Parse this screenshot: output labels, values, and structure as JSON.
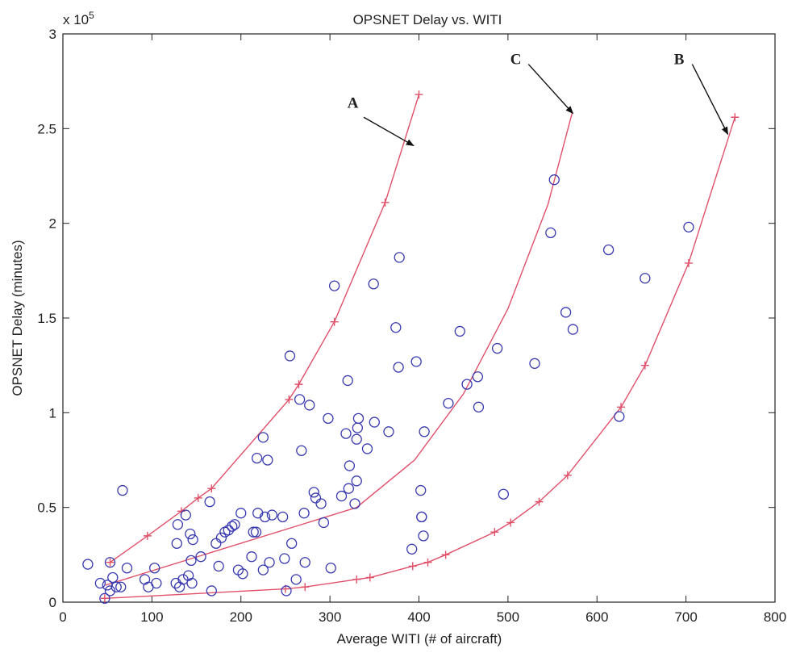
{
  "chart_data": {
    "type": "scatter",
    "title": "OPSNET Delay vs. WITI",
    "xlabel": "Average WITI (# of aircraft)",
    "ylabel": "OPSNET Delay (minutes)",
    "y_exponent_label": "x 10",
    "y_exponent_power": "5",
    "xlim": [
      0,
      800
    ],
    "ylim": [
      0,
      3
    ],
    "xticks": [
      "0",
      "100",
      "200",
      "300",
      "400",
      "500",
      "600",
      "700",
      "800"
    ],
    "yticks": [
      "0",
      "0.5",
      "1",
      "1.5",
      "2",
      "2.5",
      "3"
    ],
    "grid": false,
    "legend": "none",
    "colors": {
      "points": "#3838b0",
      "curves": "#e0506a",
      "axis": "#222222"
    },
    "scatter_points": [
      [
        28,
        0.2
      ],
      [
        42,
        0.1
      ],
      [
        47,
        0.02
      ],
      [
        50,
        0.09
      ],
      [
        53,
        0.06
      ],
      [
        53,
        0.21
      ],
      [
        56,
        0.13
      ],
      [
        60,
        0.08
      ],
      [
        65,
        0.08
      ],
      [
        67,
        0.59
      ],
      [
        72,
        0.18
      ],
      [
        92,
        0.12
      ],
      [
        96,
        0.08
      ],
      [
        103,
        0.18
      ],
      [
        105,
        0.1
      ],
      [
        127,
        0.1
      ],
      [
        128,
        0.31
      ],
      [
        129,
        0.41
      ],
      [
        131,
        0.08
      ],
      [
        135,
        0.12
      ],
      [
        138,
        0.46
      ],
      [
        141,
        0.14
      ],
      [
        143,
        0.36
      ],
      [
        144,
        0.22
      ],
      [
        145,
        0.1
      ],
      [
        146,
        0.33
      ],
      [
        155,
        0.24
      ],
      [
        165,
        0.53
      ],
      [
        167,
        0.06
      ],
      [
        172,
        0.31
      ],
      [
        175,
        0.19
      ],
      [
        178,
        0.34
      ],
      [
        182,
        0.37
      ],
      [
        186,
        0.38
      ],
      [
        190,
        0.4
      ],
      [
        193,
        0.41
      ],
      [
        197,
        0.17
      ],
      [
        200,
        0.47
      ],
      [
        202,
        0.15
      ],
      [
        212,
        0.24
      ],
      [
        214,
        0.37
      ],
      [
        217,
        0.37
      ],
      [
        218,
        0.76
      ],
      [
        219,
        0.47
      ],
      [
        225,
        0.17
      ],
      [
        225,
        0.87
      ],
      [
        227,
        0.45
      ],
      [
        230,
        0.75
      ],
      [
        232,
        0.21
      ],
      [
        235,
        0.46
      ],
      [
        247,
        0.45
      ],
      [
        249,
        0.23
      ],
      [
        251,
        0.06
      ],
      [
        255,
        1.3
      ],
      [
        257,
        0.31
      ],
      [
        262,
        0.12
      ],
      [
        266,
        1.07
      ],
      [
        268,
        0.8
      ],
      [
        271,
        0.47
      ],
      [
        272,
        0.21
      ],
      [
        277,
        1.04
      ],
      [
        282,
        0.58
      ],
      [
        284,
        0.55
      ],
      [
        290,
        0.52
      ],
      [
        293,
        0.42
      ],
      [
        298,
        0.97
      ],
      [
        301,
        0.18
      ],
      [
        305,
        1.67
      ],
      [
        313,
        0.56
      ],
      [
        318,
        0.89
      ],
      [
        320,
        1.17
      ],
      [
        321,
        0.6
      ],
      [
        322,
        0.72
      ],
      [
        328,
        0.52
      ],
      [
        330,
        0.64
      ],
      [
        330,
        0.86
      ],
      [
        331,
        0.92
      ],
      [
        332,
        0.97
      ],
      [
        342,
        0.81
      ],
      [
        349,
        1.68
      ],
      [
        350,
        0.95
      ],
      [
        366,
        0.9
      ],
      [
        374,
        1.45
      ],
      [
        377,
        1.24
      ],
      [
        378,
        1.82
      ],
      [
        392,
        0.28
      ],
      [
        397,
        1.27
      ],
      [
        402,
        0.59
      ],
      [
        403,
        0.45
      ],
      [
        403,
        0.45
      ],
      [
        405,
        0.35
      ],
      [
        406,
        0.9
      ],
      [
        433,
        1.05
      ],
      [
        446,
        1.43
      ],
      [
        454,
        1.15
      ],
      [
        466,
        1.19
      ],
      [
        467,
        1.03
      ],
      [
        488,
        1.34
      ],
      [
        495,
        0.57
      ],
      [
        530,
        1.26
      ],
      [
        548,
        1.95
      ],
      [
        552,
        2.23
      ],
      [
        565,
        1.53
      ],
      [
        573,
        1.44
      ],
      [
        613,
        1.86
      ],
      [
        625,
        0.98
      ],
      [
        654,
        1.71
      ],
      [
        703,
        1.98
      ]
    ],
    "series": [
      {
        "values": [
          [
            53,
            0.21
          ],
          [
            95,
            0.35
          ],
          [
            133,
            0.48
          ],
          [
            152,
            0.55
          ],
          [
            167,
            0.6
          ],
          [
            254,
            1.07
          ],
          [
            265,
            1.15
          ],
          [
            305,
            1.48
          ],
          [
            362,
            2.11
          ],
          [
            400,
            2.68
          ]
        ]
      },
      {
        "values": [
          [
            48,
            0.09
          ],
          [
            330,
            0.5
          ],
          [
            395,
            0.75
          ],
          [
            450,
            1.1
          ],
          [
            500,
            1.55
          ],
          [
            545,
            2.1
          ],
          [
            572,
            2.58
          ]
        ]
      },
      {
        "values": [
          [
            47,
            0.02
          ],
          [
            250,
            0.07
          ],
          [
            272,
            0.08
          ],
          [
            330,
            0.12
          ],
          [
            345,
            0.13
          ],
          [
            393,
            0.19
          ],
          [
            410,
            0.21
          ],
          [
            430,
            0.25
          ],
          [
            485,
            0.37
          ],
          [
            503,
            0.42
          ],
          [
            535,
            0.53
          ],
          [
            567,
            0.67
          ],
          [
            627,
            1.03
          ],
          [
            654,
            1.25
          ],
          [
            703,
            1.79
          ],
          [
            755,
            2.56
          ]
        ]
      }
    ],
    "annotations": [
      {
        "text": "A",
        "label_at": [
          332,
          2.61
        ],
        "arrow_from": [
          338,
          2.56
        ],
        "arrow_to": [
          394,
          2.41
        ]
      },
      {
        "text": "C",
        "label_at": [
          515,
          2.84
        ],
        "arrow_from": [
          523,
          2.84
        ],
        "arrow_to": [
          573,
          2.58
        ]
      },
      {
        "text": "B",
        "label_at": [
          698,
          2.84
        ],
        "arrow_from": [
          707,
          2.84
        ],
        "arrow_to": [
          747,
          2.47
        ]
      }
    ]
  }
}
